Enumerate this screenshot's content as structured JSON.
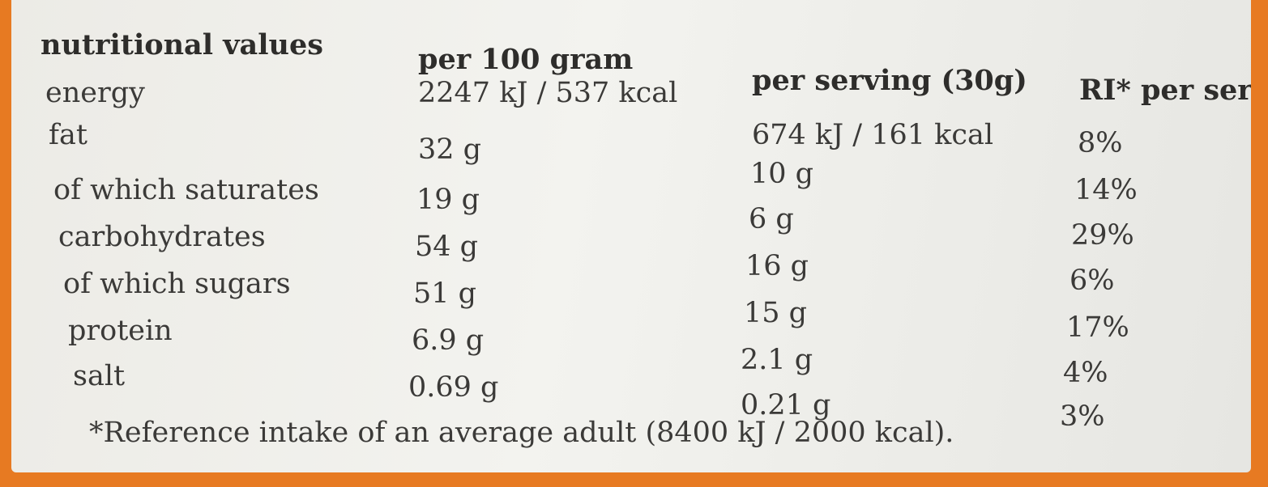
{
  "table": {
    "header": [
      "nutritional values",
      "per 100 gram",
      "per serving (30g)",
      "RI* per ser"
    ],
    "rows": [
      [
        "energy",
        "2247 kJ / 537 kcal",
        "674 kJ / 161 kcal",
        "8%"
      ],
      [
        "fat",
        "32 g",
        "10 g",
        "14%"
      ],
      [
        "of which saturates",
        "19 g",
        "6 g",
        "29%"
      ],
      [
        "carbohydrates",
        "54 g",
        "16 g",
        "6%"
      ],
      [
        "of which sugars",
        "51 g",
        "15 g",
        "17%"
      ],
      [
        "protein",
        "6.9 g",
        "2.1 g",
        "4%"
      ],
      [
        "salt",
        "0.69 g",
        "0.21 g",
        "3%"
      ]
    ]
  },
  "footnote": "*Reference intake of an average adult (8400 kJ / 2000 kcal)."
}
